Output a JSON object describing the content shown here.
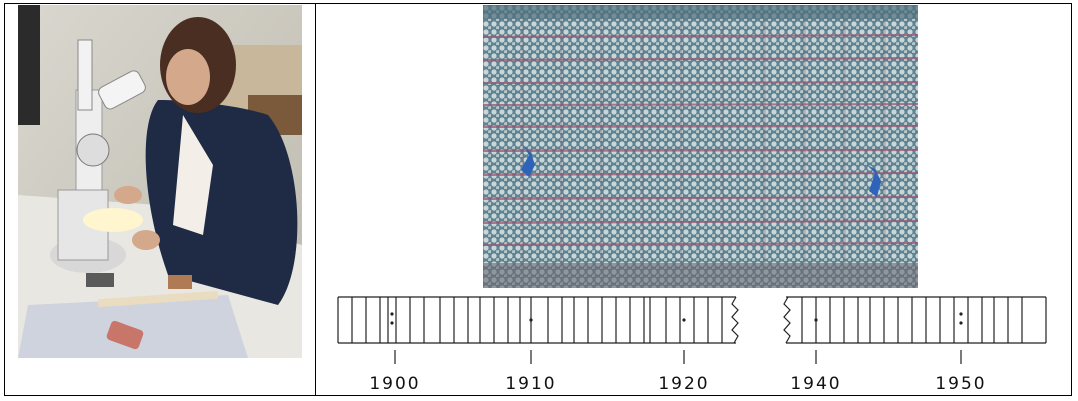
{
  "images": {
    "photo": {
      "description": "researcher-at-stereomicroscope"
    },
    "micrograph": {
      "description": "tree-ring-cross-section"
    }
  },
  "skeleton_plot": {
    "labels": [
      "1900",
      "1910",
      "1920",
      "1940",
      "1950"
    ]
  }
}
